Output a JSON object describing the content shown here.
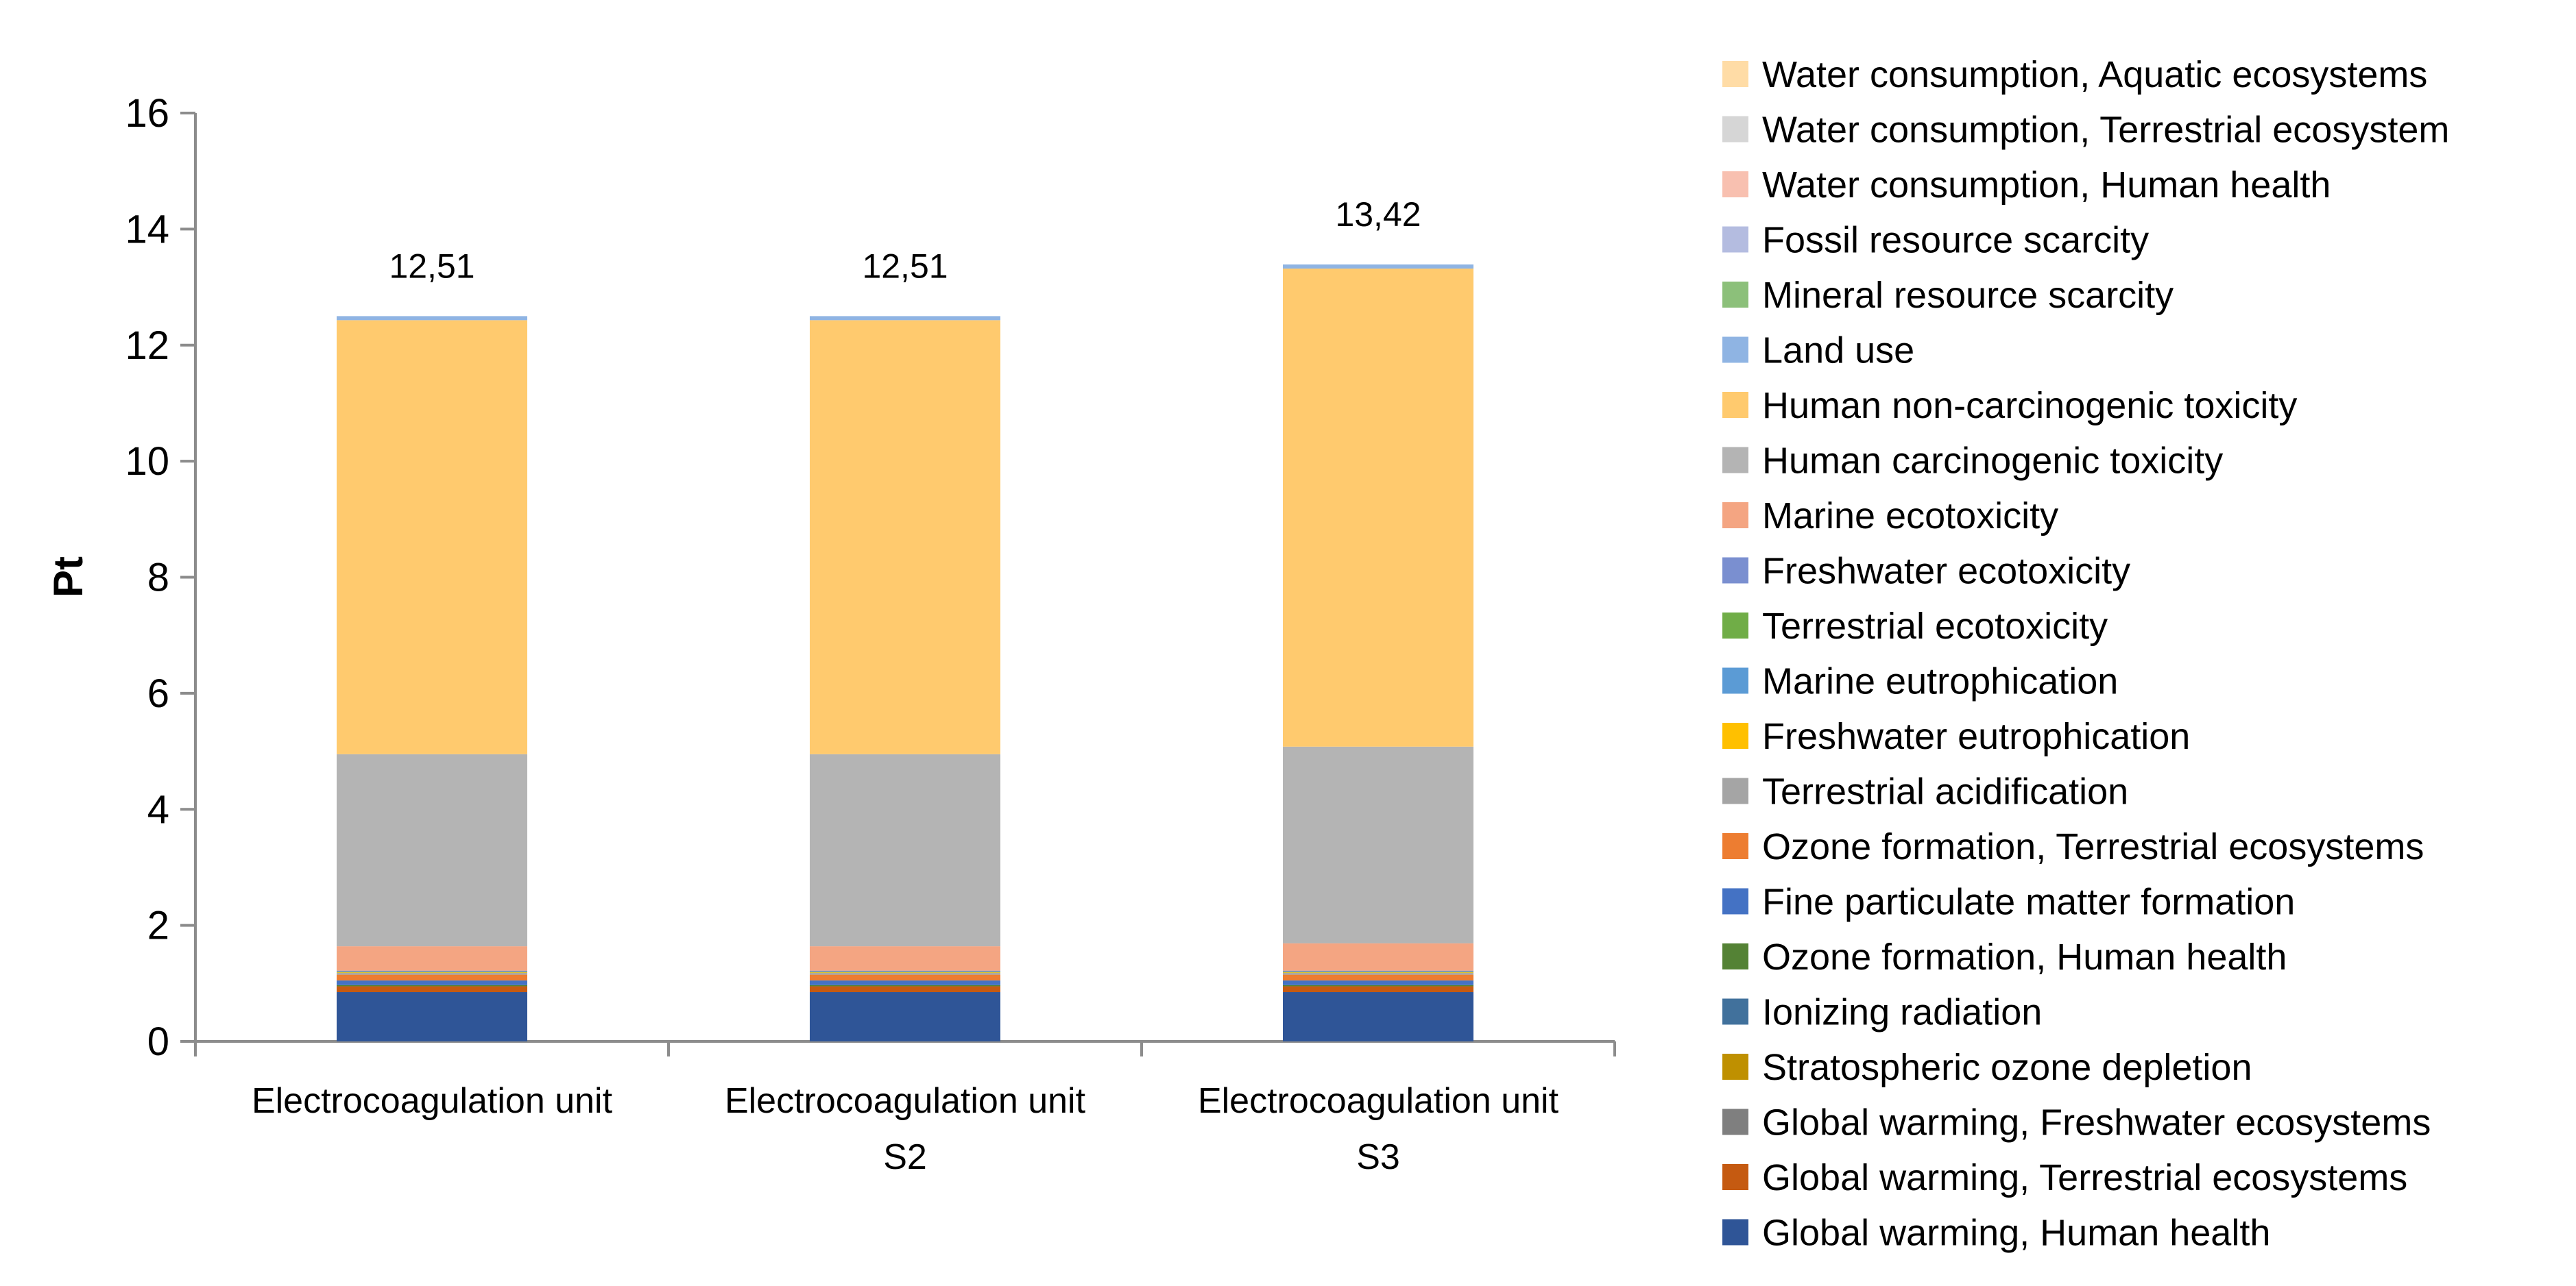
{
  "chart_data": {
    "type": "stacked-bar",
    "title": "",
    "xlabel": "",
    "ylabel": "Pt",
    "ylim": [
      0,
      16
    ],
    "yticks": [
      0,
      2,
      4,
      6,
      8,
      10,
      12,
      14,
      16
    ],
    "gridlines": false,
    "legend_position": "right",
    "categories": [
      [
        "Electrocoagulation unit"
      ],
      [
        "Electrocoagulation unit",
        "S2"
      ],
      [
        "Electrocoagulation unit",
        "S3"
      ]
    ],
    "totals": [
      "12,51",
      "12,51",
      "13,42"
    ],
    "series": [
      {
        "name": "Global warming, Human health",
        "color": "#2F5597",
        "values": [
          0.85,
          0.85,
          0.85
        ]
      },
      {
        "name": "Global warming, Terrestrial ecosystems",
        "color": "#C55A11",
        "values": [
          0.1,
          0.1,
          0.1
        ]
      },
      {
        "name": "Global warming, Freshwater ecosystems",
        "color": "#7F7F7F",
        "values": [
          0.0,
          0.0,
          0.0
        ]
      },
      {
        "name": "Stratospheric ozone depletion",
        "color": "#BF9000",
        "values": [
          0.0,
          0.0,
          0.0
        ]
      },
      {
        "name": "Ionizing radiation",
        "color": "#41719C",
        "values": [
          0.0,
          0.0,
          0.0
        ]
      },
      {
        "name": "Ozone formation, Human health",
        "color": "#548235",
        "values": [
          0.02,
          0.02,
          0.02
        ]
      },
      {
        "name": "Fine particulate matter formation",
        "color": "#4472C4",
        "values": [
          0.08,
          0.08,
          0.08
        ]
      },
      {
        "name": "Ozone formation, Terrestrial ecosystems",
        "color": "#ED7D31",
        "values": [
          0.1,
          0.1,
          0.1
        ]
      },
      {
        "name": "Terrestrial acidification",
        "color": "#A5A5A5",
        "values": [
          0.03,
          0.03,
          0.03
        ]
      },
      {
        "name": "Freshwater eutrophication",
        "color": "#FFC000",
        "values": [
          0.01,
          0.01,
          0.01
        ]
      },
      {
        "name": "Marine eutrophication",
        "color": "#5B9BD5",
        "values": [
          0.0,
          0.0,
          0.0
        ]
      },
      {
        "name": "Terrestrial ecotoxicity",
        "color": "#70AD47",
        "values": [
          0.01,
          0.01,
          0.01
        ]
      },
      {
        "name": "Freshwater ecotoxicity",
        "color": "#7A8FD0",
        "values": [
          0.02,
          0.02,
          0.02
        ]
      },
      {
        "name": "Marine ecotoxicity",
        "color": "#F4A582",
        "values": [
          0.42,
          0.42,
          0.47
        ]
      },
      {
        "name": "Human carcinogenic toxicity",
        "color": "#B4B4B4",
        "values": [
          3.31,
          3.31,
          3.39
        ]
      },
      {
        "name": "Human non-carcinogenic toxicity",
        "color": "#FFCA6E",
        "values": [
          7.48,
          7.48,
          8.24
        ]
      },
      {
        "name": "Land use",
        "color": "#8FB4E3",
        "values": [
          0.07,
          0.07,
          0.07
        ]
      },
      {
        "name": "Mineral resource scarcity",
        "color": "#8CC07A",
        "values": [
          0.0,
          0.0,
          0.0
        ]
      },
      {
        "name": "Fossil resource scarcity",
        "color": "#B4BCE0",
        "values": [
          0.0,
          0.0,
          0.0
        ]
      },
      {
        "name": "Water consumption, Human health",
        "color": "#F8C0B0",
        "values": [
          0.0,
          0.0,
          0.0
        ]
      },
      {
        "name": "Water consumption, Terrestrial ecosystem",
        "color": "#D6D6D6",
        "values": [
          0.0,
          0.0,
          0.0
        ]
      },
      {
        "name": "Water consumption, Aquatic ecosystems",
        "color": "#FFDCA6",
        "values": [
          0.0,
          0.0,
          0.0
        ]
      }
    ]
  }
}
